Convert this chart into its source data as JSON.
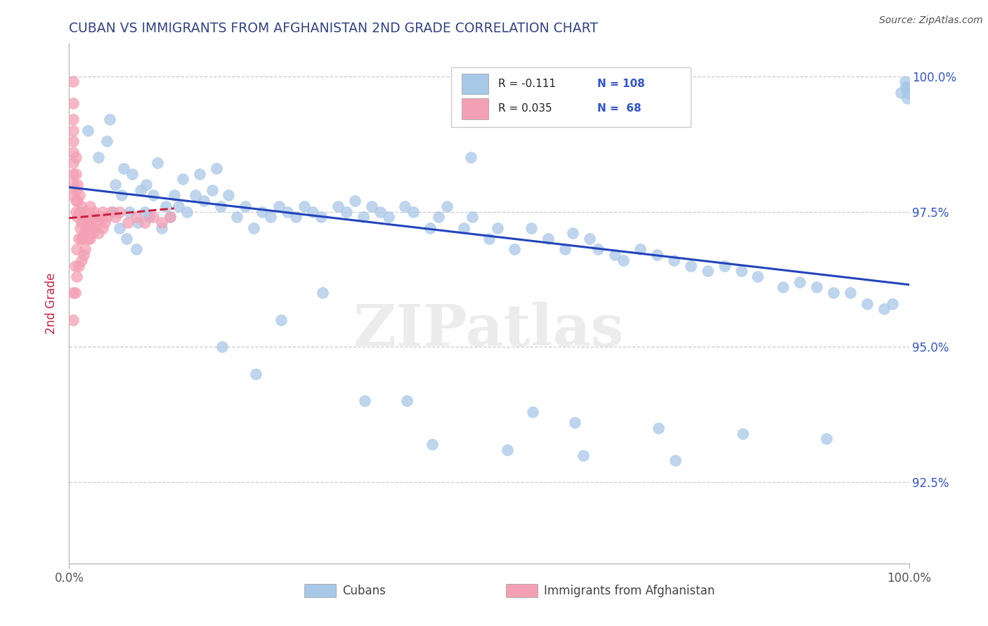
{
  "title": "CUBAN VS IMMIGRANTS FROM AFGHANISTAN 2ND GRADE CORRELATION CHART",
  "source_text": "Source: ZipAtlas.com",
  "ylabel": "2nd Grade",
  "watermark": "ZIPatlas",
  "xmin": 0.0,
  "xmax": 1.0,
  "ymin": 0.91,
  "ymax": 1.006,
  "yticks": [
    0.925,
    0.95,
    0.975,
    1.0
  ],
  "ytick_labels": [
    "92.5%",
    "95.0%",
    "97.5%",
    "100.0%"
  ],
  "blue_R": "-0.111",
  "blue_N": "108",
  "pink_R": "0.035",
  "pink_N": "68",
  "legend_label_blue": "Cubans",
  "legend_label_pink": "Immigrants from Afghanistan",
  "blue_color": "#a8c8e8",
  "pink_color": "#f4a0b4",
  "blue_line_color": "#2244bb",
  "pink_line_color": "#cc2244",
  "stat_color": "#3355cc",
  "title_color": "#334488",
  "ylabel_color": "#cc2244",
  "blue_scatter_x": [
    0.022,
    0.035,
    0.045,
    0.048,
    0.052,
    0.055,
    0.06,
    0.062,
    0.065,
    0.068,
    0.072,
    0.075,
    0.08,
    0.082,
    0.085,
    0.09,
    0.092,
    0.095,
    0.1,
    0.105,
    0.11,
    0.115,
    0.12,
    0.125,
    0.13,
    0.135,
    0.14,
    0.15,
    0.155,
    0.16,
    0.17,
    0.175,
    0.18,
    0.19,
    0.2,
    0.21,
    0.22,
    0.23,
    0.24,
    0.25,
    0.26,
    0.27,
    0.28,
    0.29,
    0.3,
    0.32,
    0.33,
    0.34,
    0.35,
    0.36,
    0.37,
    0.38,
    0.4,
    0.41,
    0.43,
    0.44,
    0.45,
    0.47,
    0.48,
    0.5,
    0.51,
    0.53,
    0.55,
    0.57,
    0.59,
    0.6,
    0.62,
    0.63,
    0.65,
    0.66,
    0.68,
    0.7,
    0.72,
    0.74,
    0.76,
    0.78,
    0.8,
    0.82,
    0.85,
    0.87,
    0.89,
    0.91,
    0.93,
    0.95,
    0.97,
    0.98,
    0.99,
    0.995,
    0.997,
    0.999,
    0.998,
    0.996,
    0.478,
    0.302,
    0.252,
    0.182,
    0.222,
    0.352,
    0.402,
    0.552,
    0.602,
    0.702,
    0.802,
    0.902,
    0.432,
    0.522,
    0.612,
    0.722
  ],
  "blue_scatter_y": [
    0.99,
    0.985,
    0.988,
    0.992,
    0.975,
    0.98,
    0.972,
    0.978,
    0.983,
    0.97,
    0.975,
    0.982,
    0.968,
    0.973,
    0.979,
    0.975,
    0.98,
    0.974,
    0.978,
    0.984,
    0.972,
    0.976,
    0.974,
    0.978,
    0.976,
    0.981,
    0.975,
    0.978,
    0.982,
    0.977,
    0.979,
    0.983,
    0.976,
    0.978,
    0.974,
    0.976,
    0.972,
    0.975,
    0.974,
    0.976,
    0.975,
    0.974,
    0.976,
    0.975,
    0.974,
    0.976,
    0.975,
    0.977,
    0.974,
    0.976,
    0.975,
    0.974,
    0.976,
    0.975,
    0.972,
    0.974,
    0.976,
    0.972,
    0.974,
    0.97,
    0.972,
    0.968,
    0.972,
    0.97,
    0.968,
    0.971,
    0.97,
    0.968,
    0.967,
    0.966,
    0.968,
    0.967,
    0.966,
    0.965,
    0.964,
    0.965,
    0.964,
    0.963,
    0.961,
    0.962,
    0.961,
    0.96,
    0.96,
    0.958,
    0.957,
    0.958,
    0.997,
    0.999,
    0.998,
    0.997,
    0.996,
    0.998,
    0.985,
    0.96,
    0.955,
    0.95,
    0.945,
    0.94,
    0.94,
    0.938,
    0.936,
    0.935,
    0.934,
    0.933,
    0.932,
    0.931,
    0.93,
    0.929
  ],
  "pink_scatter_x": [
    0.005,
    0.005,
    0.005,
    0.005,
    0.005,
    0.005,
    0.005,
    0.005,
    0.005,
    0.005,
    0.008,
    0.008,
    0.008,
    0.008,
    0.008,
    0.01,
    0.01,
    0.01,
    0.012,
    0.012,
    0.015,
    0.015,
    0.015,
    0.018,
    0.018,
    0.02,
    0.02,
    0.022,
    0.025,
    0.025,
    0.025,
    0.028,
    0.028,
    0.03,
    0.03,
    0.032,
    0.035,
    0.035,
    0.038,
    0.04,
    0.04,
    0.042,
    0.045,
    0.05,
    0.055,
    0.06,
    0.07,
    0.08,
    0.09,
    0.1,
    0.11,
    0.12,
    0.005,
    0.005,
    0.007,
    0.007,
    0.009,
    0.009,
    0.011,
    0.011,
    0.013,
    0.015,
    0.015,
    0.017,
    0.019,
    0.022,
    0.025,
    0.03
  ],
  "pink_scatter_y": [
    0.999,
    0.995,
    0.992,
    0.99,
    0.988,
    0.986,
    0.984,
    0.982,
    0.98,
    0.978,
    0.985,
    0.982,
    0.979,
    0.977,
    0.975,
    0.98,
    0.977,
    0.974,
    0.978,
    0.975,
    0.976,
    0.973,
    0.97,
    0.974,
    0.971,
    0.975,
    0.972,
    0.973,
    0.976,
    0.973,
    0.97,
    0.974,
    0.971,
    0.975,
    0.972,
    0.973,
    0.974,
    0.971,
    0.974,
    0.975,
    0.972,
    0.973,
    0.974,
    0.975,
    0.974,
    0.975,
    0.973,
    0.974,
    0.973,
    0.974,
    0.973,
    0.974,
    0.96,
    0.955,
    0.965,
    0.96,
    0.968,
    0.963,
    0.97,
    0.965,
    0.972,
    0.97,
    0.966,
    0.967,
    0.968,
    0.97,
    0.972,
    0.974
  ],
  "blue_trend_x": [
    0.0,
    1.0
  ],
  "blue_trend_y": [
    0.9795,
    0.9615
  ],
  "pink_trend_x": [
    0.0,
    0.125
  ],
  "pink_trend_y": [
    0.9738,
    0.9756
  ],
  "background_color": "#ffffff"
}
